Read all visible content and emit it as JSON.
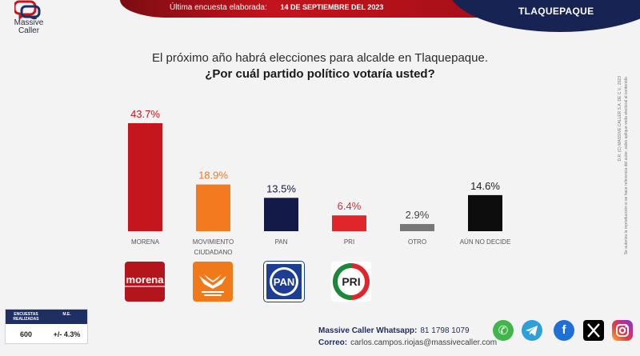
{
  "header": {
    "survey_label": "Última encuesta elaborada:",
    "survey_date": "14 DE SEPTIEMBRE DEL 2023",
    "city": "TLAQUEPAQUE",
    "brand": "Massive Caller"
  },
  "question": {
    "line1": "El próximo año habrá elecciones para alcalde en Tlaquepaque.",
    "line2": "¿Por cuál partido político votaría usted?"
  },
  "chart_data": {
    "type": "bar",
    "categories": [
      "MORENA",
      "MOVIMIENTO CIUDADANO",
      "PAN",
      "PRI",
      "OTRO",
      "AÚN NO DECIDE"
    ],
    "category_lines": [
      [
        "MORENA"
      ],
      [
        "MOVIMIENTO",
        "CIUDADANO"
      ],
      [
        "PAN"
      ],
      [
        "PRI"
      ],
      [
        "OTRO"
      ],
      [
        "AÚN NO DECIDE"
      ]
    ],
    "values": [
      43.7,
      18.9,
      13.5,
      6.4,
      2.9,
      14.6
    ],
    "value_labels": [
      "43.7%",
      "18.9%",
      "13.5%",
      "6.4%",
      "2.9%",
      "14.6%"
    ],
    "colors": [
      "#c4161c",
      "#f37a1f",
      "#141a47",
      "#e0252b",
      "#777777",
      "#0d0d0d"
    ],
    "label_colors": [
      "#c4161c",
      "#f37a1f",
      "#141a47",
      "#e0252b",
      "#444444",
      "#222222"
    ],
    "ylim": [
      0,
      43.7
    ],
    "grid": false
  },
  "party_logos": [
    {
      "name": "morena-logo",
      "text": "morena"
    },
    {
      "name": "movimiento-ciudadano-logo",
      "text": "MOVIMIENTO CIUDADANO"
    },
    {
      "name": "pan-logo",
      "text": "PAN"
    },
    {
      "name": "pri-logo",
      "text": "PRI"
    }
  ],
  "stats": {
    "col1_header": "ENCUESTAS REALIZADAS",
    "col2_header": "M.E.",
    "col1_value": "600",
    "col2_value": "+/- 4.3%"
  },
  "footer": {
    "whatsapp_label": "Massive Caller Whatsapp:",
    "whatsapp_number": "81 1798 1079",
    "email_label": "Correo:",
    "email": "carlos.campos.riojas@massivecaller.com"
  },
  "social_icons": [
    "whatsapp-icon",
    "telegram-icon",
    "facebook-icon",
    "x-icon",
    "instagram-icon"
  ],
  "legal": {
    "line1": "D.R. (C) MASSIVE CALLER S.A. DE C.V., 2023",
    "line2": "Se autoriza la reproducción si se hace referencia del autor, salvo aplique veda electoral al contenido."
  }
}
